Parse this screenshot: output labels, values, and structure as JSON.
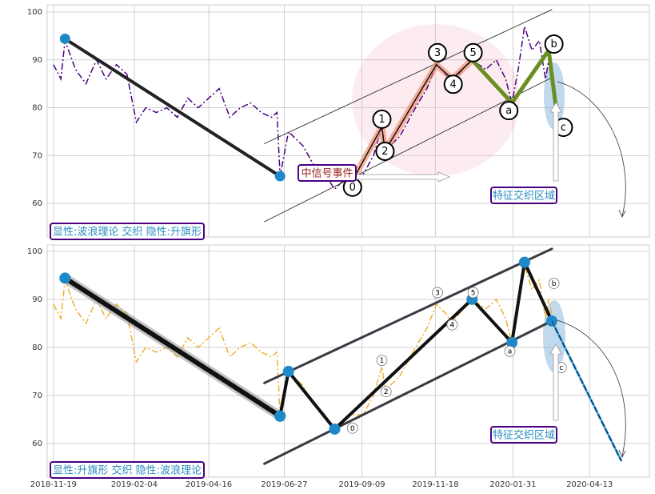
{
  "chart_data": [
    {
      "type": "line",
      "x": [
        "2018-11-19",
        "2018-11-26",
        "2018-11-30",
        "2018-12-10",
        "2018-12-20",
        "2018-12-30",
        "2019-01-08",
        "2019-01-18",
        "2019-01-28",
        "2019-02-06",
        "2019-02-15",
        "2019-02-25",
        "2019-03-07",
        "2019-03-17",
        "2019-03-27",
        "2019-04-06",
        "2019-04-16",
        "2019-04-26",
        "2019-05-06",
        "2019-05-16",
        "2019-05-26",
        "2019-06-05",
        "2019-06-15",
        "2019-06-20",
        "2019-06-23",
        "2019-07-01",
        "2019-07-15",
        "2019-07-25",
        "2019-08-05",
        "2019-08-14",
        "2019-08-28",
        "2019-09-10",
        "2019-09-20",
        "2019-09-28",
        "2019-10-01",
        "2019-10-15",
        "2019-10-30",
        "2019-11-10",
        "2019-11-19",
        "2019-11-28",
        "2019-12-04",
        "2019-12-14",
        "2019-12-23",
        "2020-01-05",
        "2020-01-15",
        "2020-01-24",
        "2020-01-30",
        "2020-02-05",
        "2020-02-11",
        "2020-02-18",
        "2020-02-25",
        "2020-03-02",
        "2020-03-05",
        "2020-03-10"
      ],
      "values": [
        89,
        86,
        94,
        88,
        85,
        90,
        86,
        89,
        87,
        77,
        80,
        79,
        80,
        78,
        82,
        80,
        82,
        84,
        78,
        80,
        81,
        79,
        78,
        79,
        65.7,
        75,
        72,
        68,
        66,
        63,
        66,
        66,
        70,
        76,
        71,
        74,
        80,
        84,
        89,
        87,
        85,
        88,
        90,
        88,
        90,
        86,
        81,
        88,
        97,
        92,
        94,
        86,
        90,
        85
      ],
      "color": "#4b0082",
      "xlim": [
        "2018-11-13",
        "2020-06-09"
      ],
      "ylim": [
        53,
        101.5
      ],
      "yticks": [
        60,
        70,
        80,
        90,
        100
      ],
      "lines": [
        {
          "x": [
            "2018-11-30",
            "2019-06-23"
          ],
          "values": [
            94.4,
            65.7
          ],
          "color": "#222222"
        },
        {
          "x": [
            "2019-06-08",
            "2020-03-08"
          ],
          "values": [
            72.5,
            100.5
          ],
          "color": "#444444"
        },
        {
          "x": [
            "2019-06-08",
            "2020-03-08"
          ],
          "values": [
            56.2,
            86.3
          ],
          "color": "#444444"
        },
        {
          "x": [
            "2019-09-03",
            "2019-09-28",
            "2019-10-01",
            "2019-11-19",
            "2019-12-04",
            "2019-12-23"
          ],
          "values": [
            66,
            76,
            71,
            89,
            86,
            90
          ],
          "color": "#f08c6c"
        },
        {
          "x": [
            "2019-12-23",
            "2020-01-30",
            "2020-03-05",
            "2020-03-12"
          ],
          "values": [
            90,
            81,
            92,
            80
          ],
          "color": "#6b8e23"
        }
      ],
      "points": [
        {
          "label": "0",
          "x": "2019-08-31",
          "value": 63.4
        },
        {
          "label": "1",
          "x": "2019-09-28",
          "value": 77.6
        },
        {
          "label": "2",
          "x": "2019-10-01",
          "value": 70.9
        },
        {
          "label": "3",
          "x": "2019-11-20",
          "value": 91.5
        },
        {
          "label": "4",
          "x": "2019-12-05",
          "value": 84.9
        },
        {
          "label": "5",
          "x": "2019-12-24",
          "value": 91.5
        },
        {
          "label": "a",
          "x": "2020-01-27",
          "value": 79.4
        },
        {
          "label": "b",
          "x": "2020-03-10",
          "value": 93.3
        },
        {
          "label": "c",
          "x": "2020-03-19",
          "value": 75.9
        }
      ],
      "annotations": [
        "显性:波浪理论 交织 隐性:升旗形",
        "中信号事件",
        "特征交织区域"
      ]
    },
    {
      "type": "line",
      "x": [
        "2018-11-19",
        "2018-11-26",
        "2018-11-30",
        "2018-12-10",
        "2018-12-20",
        "2018-12-30",
        "2019-01-08",
        "2019-01-18",
        "2019-01-28",
        "2019-02-06",
        "2019-02-15",
        "2019-02-25",
        "2019-03-07",
        "2019-03-17",
        "2019-03-27",
        "2019-04-06",
        "2019-04-16",
        "2019-04-26",
        "2019-05-06",
        "2019-05-16",
        "2019-05-26",
        "2019-06-05",
        "2019-06-15",
        "2019-06-20",
        "2019-06-23",
        "2019-07-01",
        "2019-07-15",
        "2019-07-25",
        "2019-08-05",
        "2019-08-14",
        "2019-08-28",
        "2019-09-10",
        "2019-09-20",
        "2019-09-28",
        "2019-10-01",
        "2019-10-15",
        "2019-10-30",
        "2019-11-10",
        "2019-11-19",
        "2019-11-28",
        "2019-12-04",
        "2019-12-14",
        "2019-12-23",
        "2020-01-05",
        "2020-01-15",
        "2020-01-24",
        "2020-01-30",
        "2020-02-05",
        "2020-02-11",
        "2020-02-18",
        "2020-02-25",
        "2020-03-02",
        "2020-03-05",
        "2020-03-10"
      ],
      "values": [
        89,
        86,
        94,
        88,
        85,
        90,
        86,
        89,
        87,
        77,
        80,
        79,
        80,
        78,
        82,
        80,
        82,
        84,
        78,
        80,
        81,
        79,
        78,
        79,
        65.7,
        75,
        72,
        68,
        66,
        63,
        66,
        66,
        70,
        76,
        71,
        74,
        80,
        84,
        89,
        87,
        85,
        88,
        90,
        88,
        90,
        86,
        81,
        88,
        97,
        92,
        94,
        86,
        90,
        85
      ],
      "color": "#f0b030",
      "xlim": [
        "2018-11-13",
        "2020-06-09"
      ],
      "ylim": [
        53,
        101.3
      ],
      "yticks": [
        60,
        70,
        80,
        90,
        100
      ],
      "xticks": [
        "2018-11-19",
        "2019-02-04",
        "2019-04-16",
        "2019-06-27",
        "2019-09-09",
        "2019-11-18",
        "2020-01-31",
        "2020-04-13"
      ],
      "lines": [
        {
          "x": [
            "2018-11-30",
            "2019-06-23"
          ],
          "values": [
            94.4,
            65.7
          ],
          "color": "#111111"
        },
        {
          "x": [
            "2019-06-08",
            "2020-03-08"
          ],
          "values": [
            72.6,
            100.5
          ],
          "color": "#3a3a44"
        },
        {
          "x": [
            "2019-06-08",
            "2020-03-08"
          ],
          "values": [
            55.8,
            85.5
          ],
          "color": "#3a3a44"
        },
        {
          "x": [
            "2019-06-23",
            "2019-07-01",
            "2019-08-14",
            "2019-12-23",
            "2020-01-30",
            "2020-02-11",
            "2020-03-08"
          ],
          "values": [
            65.7,
            75,
            63,
            90,
            81,
            97.7,
            85.5
          ],
          "color": "#111111"
        },
        {
          "x": [
            "2020-03-08",
            "2020-05-13"
          ],
          "values": [
            85.5,
            56.5
          ],
          "color": "#2a9fd8"
        }
      ],
      "points": [
        {
          "label": "0",
          "x": "2019-08-31",
          "value": 63.2
        },
        {
          "label": "1",
          "x": "2019-09-28",
          "value": 77.3
        },
        {
          "label": "2",
          "x": "2019-10-02",
          "value": 70.8
        },
        {
          "label": "3",
          "x": "2019-11-20",
          "value": 91.4
        },
        {
          "label": "4",
          "x": "2019-12-04",
          "value": 84.7
        },
        {
          "label": "5",
          "x": "2019-12-24",
          "value": 91.4
        },
        {
          "label": "a",
          "x": "2020-01-28",
          "value": 79.2
        },
        {
          "label": "b",
          "x": "2020-03-10",
          "value": 93.3
        },
        {
          "label": "c",
          "x": "2020-03-17",
          "value": 75.8
        }
      ],
      "annotations": [
        "显性:升旗形 交织 隐性:波浪理论",
        "特征交织区域"
      ]
    }
  ]
}
